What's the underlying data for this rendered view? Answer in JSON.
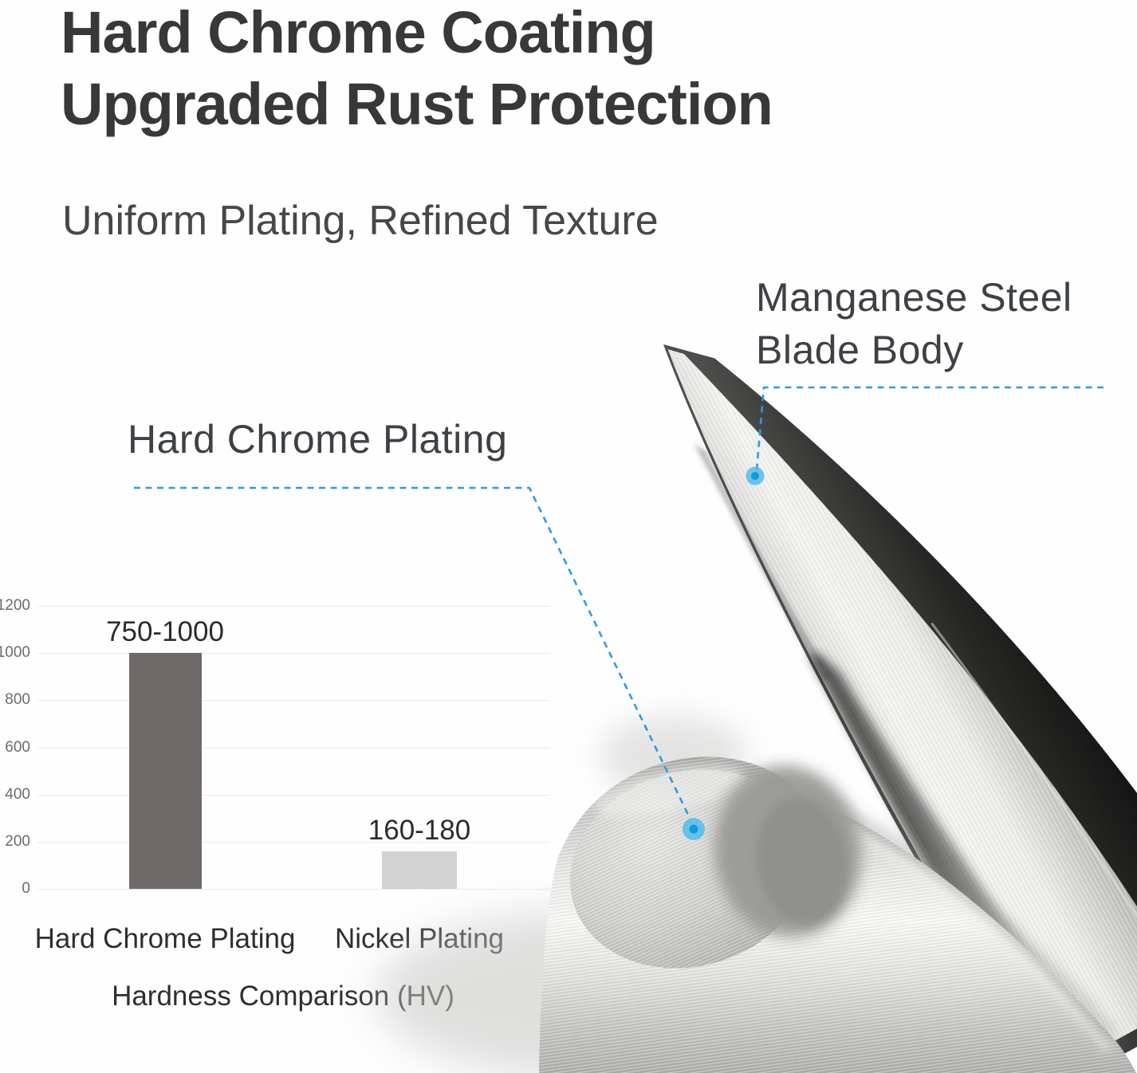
{
  "header": {
    "title_line1": "Hard Chrome Coating",
    "title_line2": "Upgraded Rust Protection",
    "subtitle": "Uniform Plating, Refined Texture"
  },
  "callouts": {
    "left": {
      "label": "Hard Chrome Plating"
    },
    "right": {
      "label_line1": "Manganese Steel",
      "label_line2": "Blade Body"
    }
  },
  "chart_data": {
    "type": "bar",
    "title": "Hardness Comparison (HV)",
    "categories": [
      "Hard Chrome Plating",
      "Nickel Plating"
    ],
    "value_labels": [
      "750-1000",
      "160-180"
    ],
    "values": [
      1000,
      160
    ],
    "value_ranges": [
      [
        750,
        1000
      ],
      [
        160,
        180
      ]
    ],
    "ylim": [
      0,
      1200
    ],
    "yticks": [
      0,
      200,
      400,
      600,
      800,
      1000,
      1200
    ],
    "bar_colors": [
      "#6e6a69",
      "#d2d2d2"
    ],
    "grid": true,
    "legend": false,
    "xlabel": "Hardness Comparison (HV)",
    "ylabel": ""
  },
  "colors": {
    "accent_blue": "#2d9be0",
    "dot_outer": "#55bbe8",
    "dot_inner": "#0d9ade",
    "title_text": "#393739",
    "bar_dark": "#6e6a69",
    "bar_light": "#d2d2d2"
  }
}
